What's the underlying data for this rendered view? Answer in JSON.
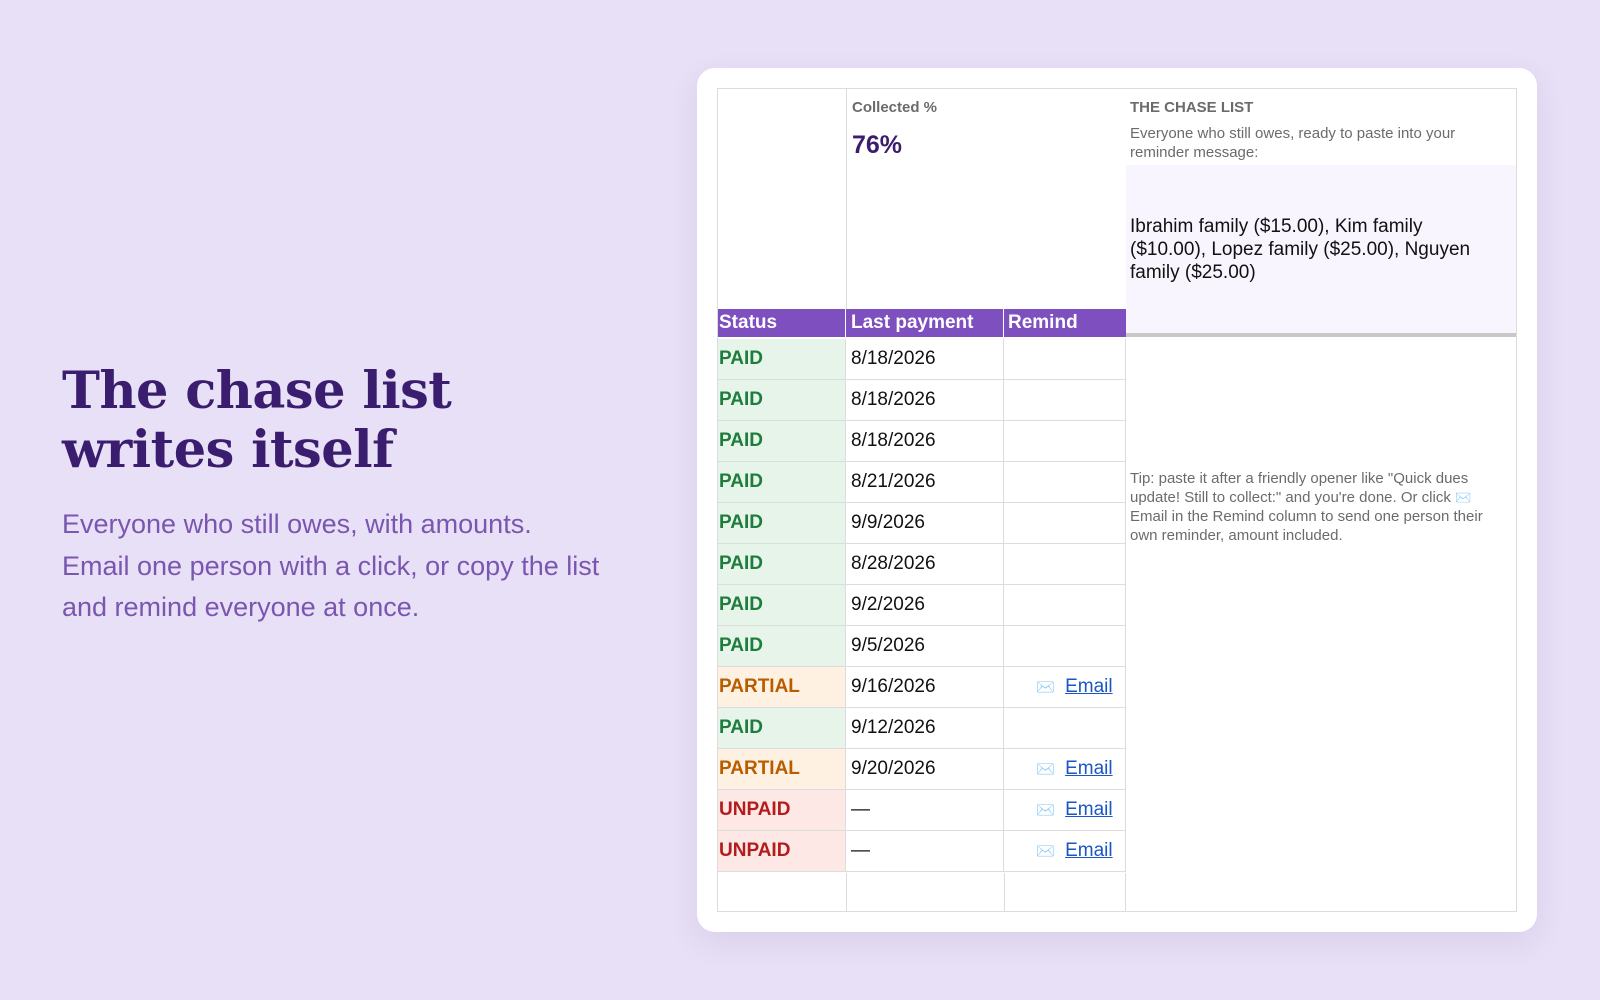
{
  "hero": {
    "title_line1": "The chase list",
    "title_line2": "writes itself",
    "body_line1": "Everyone who still owes, with amounts.",
    "body_line2": "Email one person with a click, or copy the list",
    "body_line3": "and remind everyone at once."
  },
  "summary": {
    "collected_label": "Collected %",
    "collected_value": "76%"
  },
  "chase": {
    "title": "THE CHASE LIST",
    "description": "Everyone who still owes, ready to paste into your reminder message:",
    "list": "Ibrahim family ($15.00), Kim family ($10.00), Lopez family ($25.00), Nguyen family ($25.00)",
    "tip_before": "Tip: paste it after a friendly opener like \"Quick dues update! Still to collect:\" and you're done. Or click ",
    "tip_after": " Email in the Remind column to send one person their own reminder, amount included."
  },
  "table": {
    "headers": {
      "status": "Status",
      "last_payment": "Last payment",
      "remind": "Remind"
    },
    "email_label": "Email",
    "rows": [
      {
        "status": "PAID",
        "date": "8/18/2026",
        "remind": ""
      },
      {
        "status": "PAID",
        "date": "8/18/2026",
        "remind": ""
      },
      {
        "status": "PAID",
        "date": "8/18/2026",
        "remind": ""
      },
      {
        "status": "PAID",
        "date": "8/21/2026",
        "remind": ""
      },
      {
        "status": "PAID",
        "date": "9/9/2026",
        "remind": ""
      },
      {
        "status": "PAID",
        "date": "8/28/2026",
        "remind": ""
      },
      {
        "status": "PAID",
        "date": "9/2/2026",
        "remind": ""
      },
      {
        "status": "PAID",
        "date": "9/5/2026",
        "remind": ""
      },
      {
        "status": "PARTIAL",
        "date": "9/16/2026",
        "remind": "Email"
      },
      {
        "status": "PAID",
        "date": "9/12/2026",
        "remind": ""
      },
      {
        "status": "PARTIAL",
        "date": "9/20/2026",
        "remind": "Email"
      },
      {
        "status": "UNPAID",
        "date": "—",
        "remind": "Email"
      },
      {
        "status": "UNPAID",
        "date": "—",
        "remind": "Email"
      }
    ]
  },
  "icons": {
    "email": "envelope-icon"
  },
  "colors": {
    "paid": "#1e7d3c",
    "partial": "#b85c00",
    "unpaid": "#b31c1c",
    "header": "#7e4fbf",
    "title": "#3a1d6e"
  }
}
